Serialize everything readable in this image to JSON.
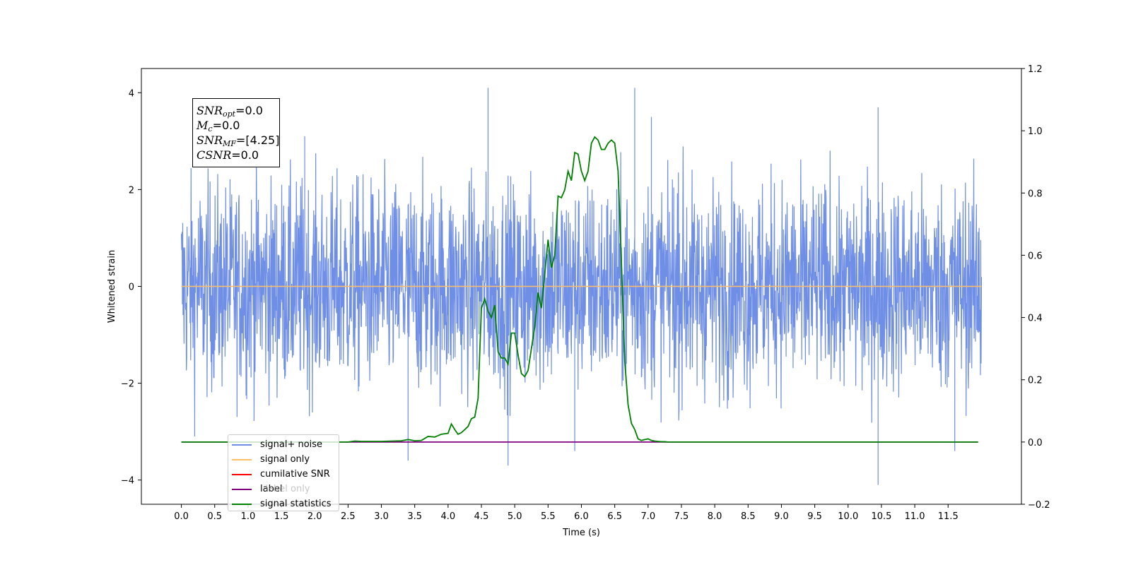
{
  "chart_data": {
    "type": "line",
    "xlabel": "Time (s)",
    "ylabel_left": "Whitened strain",
    "ylabel_right": "",
    "xlim": [
      -0.6,
      12.6
    ],
    "ylim_left": [
      -4.5,
      4.5
    ],
    "ylim_right": [
      -0.2,
      1.2
    ],
    "x_ticks": [
      0.0,
      0.5,
      1.0,
      1.5,
      2.0,
      2.5,
      3.0,
      3.5,
      4.0,
      4.5,
      5.0,
      5.5,
      6.0,
      6.5,
      7.0,
      7.5,
      8.0,
      8.5,
      9.0,
      9.5,
      10.0,
      10.5,
      11.0,
      11.5
    ],
    "x_tick_labels": [
      "0.0",
      "0.5",
      "1.0",
      "1.5",
      "2.0",
      "2.5",
      "3.0",
      "3.5",
      "4.0",
      "4.5",
      "5.0",
      "5.5",
      "6.0",
      "6.5",
      "7.0",
      "7.5",
      "8.0",
      "8.5",
      "9.0",
      "9.5",
      "10.0",
      "10.5",
      "11.0",
      "11.5"
    ],
    "y_left_ticks": [
      -4,
      -2,
      0,
      2,
      4
    ],
    "y_left_tick_labels": [
      "−4",
      "−2",
      "0",
      "2",
      "4"
    ],
    "y_right_ticks": [
      -0.2,
      0.0,
      0.2,
      0.4,
      0.6,
      0.8,
      1.0,
      1.2
    ],
    "y_right_tick_labels": [
      "−0.2",
      "0.0",
      "0.2",
      "0.4",
      "0.6",
      "0.8",
      "1.0",
      "1.2"
    ],
    "legend_placement": "lower-left",
    "grid": false,
    "series": [
      {
        "name": "signal+ noise",
        "color": "#6f8ee6",
        "axis": "left",
        "kind": "noise",
        "x_range": [
          0.0,
          12.0
        ],
        "envelope_typical": [
          -1.3,
          1.3
        ],
        "envelope_peaks": [
          -2.9,
          2.9
        ],
        "spikes": [
          [
            4.6,
            4.1
          ],
          [
            6.8,
            4.1
          ],
          [
            10.45,
            3.7
          ],
          [
            7.05,
            3.5
          ],
          [
            1.85,
            3.1
          ],
          [
            4.9,
            -3.7
          ],
          [
            10.45,
            -4.1
          ],
          [
            3.4,
            -3.6
          ],
          [
            0.2,
            -3.1
          ],
          [
            11.6,
            -3.4
          ],
          [
            5.9,
            -3.4
          ]
        ]
      },
      {
        "name": "signal only",
        "color": "#ffbf66",
        "axis": "left",
        "x": [
          0.0,
          12.0
        ],
        "y": [
          0.0,
          0.0
        ]
      },
      {
        "name": "cumilative SNR",
        "color": "#ff0000",
        "axis": "left",
        "x": [],
        "y": []
      },
      {
        "name": "label",
        "color": "#800080",
        "axis": "right",
        "x": [
          0.0,
          11.95
        ],
        "y": [
          0.0,
          0.0
        ]
      },
      {
        "name": "signal statistics",
        "color": "#008000",
        "axis": "right",
        "x": [
          0.0,
          2.5,
          2.6,
          2.7,
          3.0,
          3.3,
          3.4,
          3.5,
          3.6,
          3.7,
          3.8,
          3.9,
          4.0,
          4.05,
          4.1,
          4.15,
          4.2,
          4.3,
          4.35,
          4.4,
          4.45,
          4.5,
          4.55,
          4.6,
          4.65,
          4.7,
          4.75,
          4.8,
          4.85,
          4.9,
          4.95,
          5.0,
          5.05,
          5.1,
          5.15,
          5.2,
          5.3,
          5.35,
          5.4,
          5.5,
          5.55,
          5.6,
          5.65,
          5.7,
          5.75,
          5.8,
          5.85,
          5.9,
          5.95,
          6.0,
          6.05,
          6.1,
          6.15,
          6.2,
          6.25,
          6.3,
          6.35,
          6.4,
          6.45,
          6.5,
          6.55,
          6.6,
          6.65,
          6.7,
          6.75,
          6.8,
          6.85,
          6.9,
          6.95,
          7.0,
          7.05,
          7.1,
          7.15,
          7.2,
          7.25,
          7.3,
          7.35,
          7.4,
          7.45,
          7.5,
          7.6,
          7.7,
          8.0,
          11.95
        ],
        "y": [
          0.0,
          0.0,
          0.003,
          0.002,
          0.002,
          0.004,
          0.008,
          0.004,
          0.005,
          0.018,
          0.016,
          0.025,
          0.028,
          0.058,
          0.04,
          0.025,
          0.03,
          0.05,
          0.075,
          0.08,
          0.14,
          0.43,
          0.46,
          0.42,
          0.4,
          0.44,
          0.29,
          0.27,
          0.27,
          0.25,
          0.35,
          0.35,
          0.28,
          0.22,
          0.21,
          0.23,
          0.37,
          0.48,
          0.43,
          0.65,
          0.56,
          0.6,
          0.79,
          0.785,
          0.81,
          0.87,
          0.84,
          0.93,
          0.925,
          0.87,
          0.84,
          0.87,
          0.96,
          0.98,
          0.97,
          0.94,
          0.94,
          0.96,
          0.97,
          0.96,
          0.87,
          0.58,
          0.26,
          0.12,
          0.06,
          0.04,
          0.01,
          0.005,
          0.008,
          0.01,
          0.005,
          0.003,
          0.002,
          0.001,
          0.001,
          0.0,
          0.0,
          0.0,
          0.0,
          0.0,
          0.0,
          0.0,
          0.0,
          0.0
        ]
      }
    ],
    "stats_box": {
      "lines": [
        {
          "name": "SNR",
          "sub": "opt",
          "value": "=0.0"
        },
        {
          "name": "M",
          "sub": "c",
          "value": "=0.0"
        },
        {
          "name": "SNR",
          "sub": "MF",
          "value": "=[4.25]"
        },
        {
          "name": "CSNR",
          "sub": "",
          "value": "=0.0"
        }
      ]
    },
    "legend_hidden_text": "label only"
  }
}
